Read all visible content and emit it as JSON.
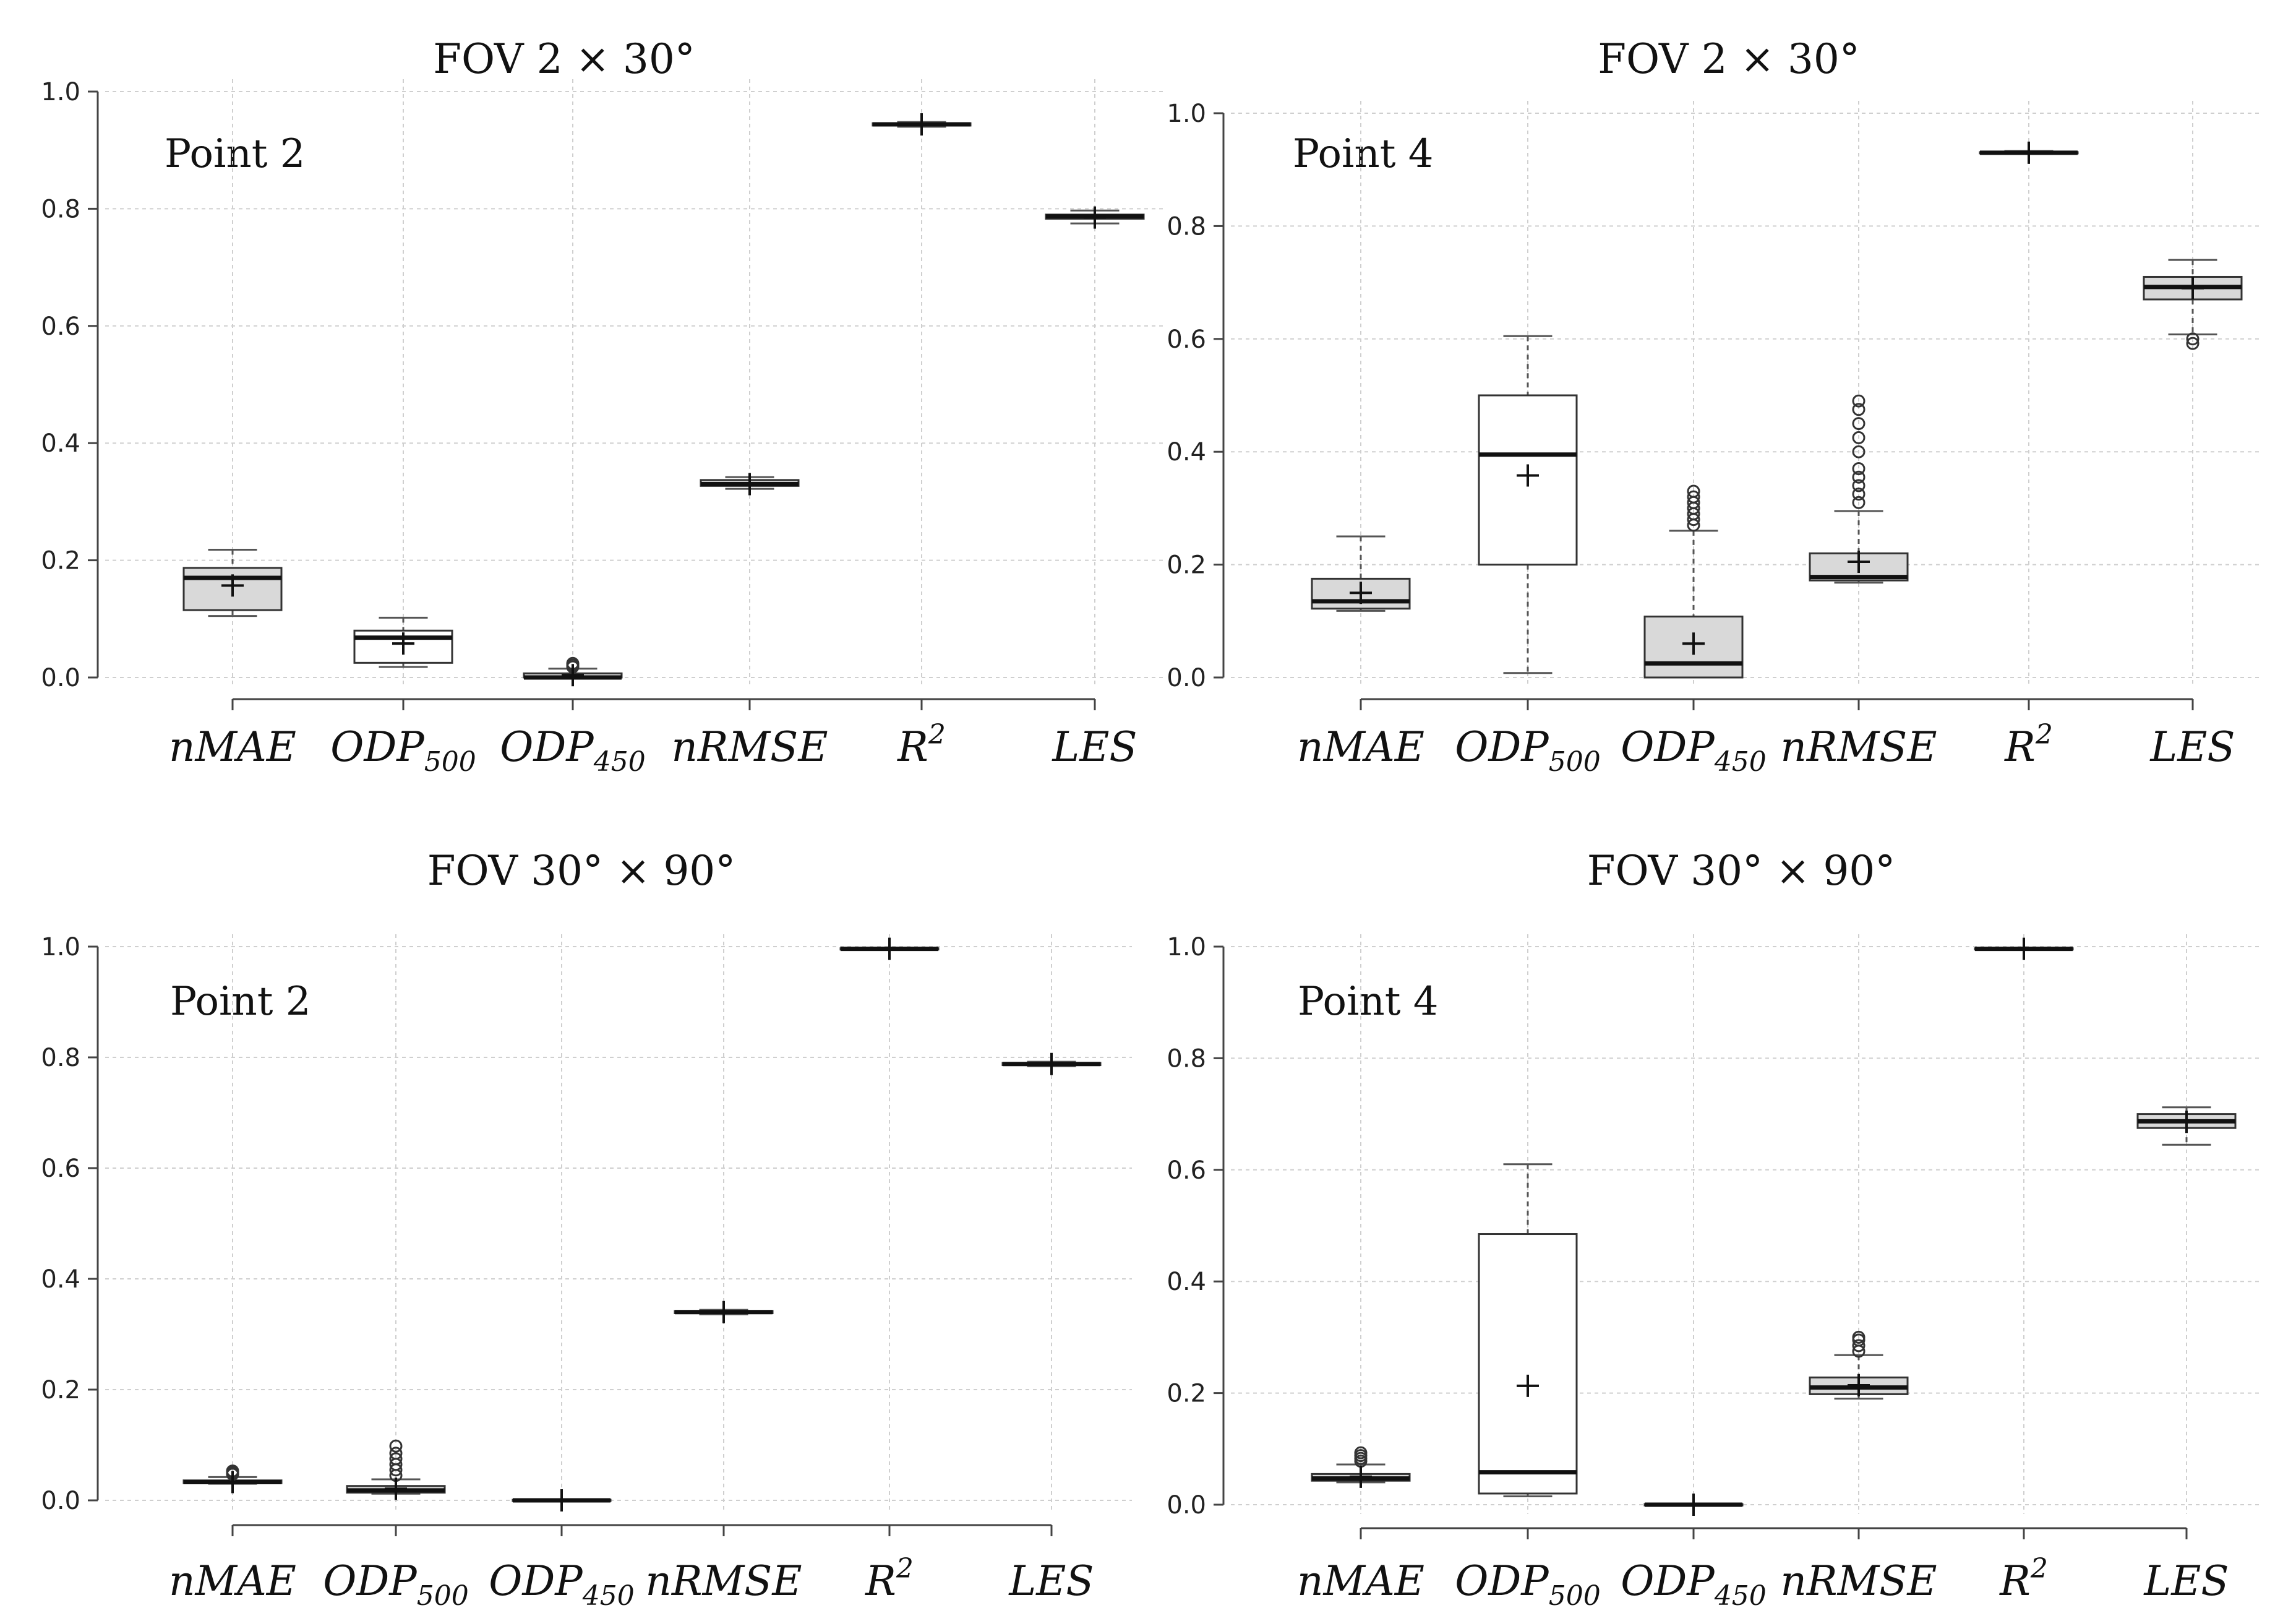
{
  "chart_data": [
    {
      "type": "box",
      "title": "FOV  2 × 30°",
      "panel_label": "Point 2",
      "ylim": [
        0,
        1.0
      ],
      "yticks": [
        "0.0",
        "0.2",
        "0.4",
        "0.6",
        "0.8",
        "1.0"
      ],
      "grid": true,
      "categories": [
        {
          "name": "nMAE",
          "sub": ""
        },
        {
          "name": "ODP",
          "sub": "500"
        },
        {
          "name": "ODP",
          "sub": "450"
        },
        {
          "name": "nRMSE",
          "sub": ""
        },
        {
          "name": "R",
          "sup": "2"
        },
        {
          "name": "LES",
          "sub": ""
        }
      ],
      "boxes": [
        {
          "fill": "#d9d9d9",
          "min": 0.105,
          "q1": 0.115,
          "median": 0.17,
          "q3": 0.187,
          "max": 0.218,
          "mean": 0.157,
          "outliers": []
        },
        {
          "fill": "#ffffff",
          "min": 0.018,
          "q1": 0.025,
          "median": 0.068,
          "q3": 0.08,
          "max": 0.102,
          "mean": 0.058,
          "outliers": []
        },
        {
          "fill": "#d9d9d9",
          "min": 0.0,
          "q1": 0.0,
          "median": 0.0,
          "q3": 0.007,
          "max": 0.015,
          "mean": 0.004,
          "outliers": [
            0.018,
            0.021,
            0.024
          ]
        },
        {
          "fill": "#d9d9d9",
          "min": 0.322,
          "q1": 0.327,
          "median": 0.33,
          "q3": 0.337,
          "max": 0.342,
          "mean": 0.33,
          "outliers": []
        },
        {
          "fill": "#d9d9d9",
          "min": 0.94,
          "q1": 0.942,
          "median": 0.944,
          "q3": 0.946,
          "max": 0.948,
          "mean": 0.944,
          "outliers": []
        },
        {
          "fill": "#d9d9d9",
          "min": 0.775,
          "q1": 0.783,
          "median": 0.787,
          "q3": 0.79,
          "max": 0.797,
          "mean": 0.785,
          "outliers": []
        }
      ]
    },
    {
      "type": "box",
      "title": "FOV  2 × 30°",
      "panel_label": "Point 4",
      "ylim": [
        0,
        1.0
      ],
      "yticks": [
        "0.0",
        "0.2",
        "0.4",
        "0.6",
        "0.8",
        "1.0"
      ],
      "grid": true,
      "categories": [
        {
          "name": "nMAE",
          "sub": ""
        },
        {
          "name": "ODP",
          "sub": "500"
        },
        {
          "name": "ODP",
          "sub": "450"
        },
        {
          "name": "nRMSE",
          "sub": ""
        },
        {
          "name": "R",
          "sup": "2"
        },
        {
          "name": "LES",
          "sub": ""
        }
      ],
      "boxes": [
        {
          "fill": "#d9d9d9",
          "min": 0.118,
          "q1": 0.122,
          "median": 0.135,
          "q3": 0.175,
          "max": 0.25,
          "mean": 0.15,
          "outliers": []
        },
        {
          "fill": "#ffffff",
          "min": 0.008,
          "q1": 0.2,
          "median": 0.395,
          "q3": 0.5,
          "max": 0.605,
          "mean": 0.358,
          "outliers": []
        },
        {
          "fill": "#d9d9d9",
          "min": 0.0,
          "q1": 0.0,
          "median": 0.025,
          "q3": 0.108,
          "max": 0.26,
          "mean": 0.06,
          "outliers": [
            0.27,
            0.28,
            0.29,
            0.3,
            0.31,
            0.32,
            0.33
          ]
        },
        {
          "fill": "#d9d9d9",
          "min": 0.168,
          "q1": 0.172,
          "median": 0.178,
          "q3": 0.22,
          "max": 0.295,
          "mean": 0.205,
          "outliers": [
            0.31,
            0.325,
            0.34,
            0.355,
            0.37,
            0.4,
            0.425,
            0.45,
            0.475,
            0.49
          ]
        },
        {
          "fill": "#d9d9d9",
          "min": 0.928,
          "q1": 0.929,
          "median": 0.93,
          "q3": 0.931,
          "max": 0.933,
          "mean": 0.93,
          "outliers": []
        },
        {
          "fill": "#d9d9d9",
          "min": 0.608,
          "q1": 0.67,
          "median": 0.692,
          "q3": 0.71,
          "max": 0.74,
          "mean": 0.69,
          "outliers": [
            0.592,
            0.6
          ]
        }
      ]
    },
    {
      "type": "box",
      "title": "FOV  30° × 90°",
      "panel_label": "Point 2",
      "ylim": [
        0,
        1.0
      ],
      "yticks": [
        "0.0",
        "0.2",
        "0.4",
        "0.6",
        "0.8",
        "1.0"
      ],
      "grid": true,
      "categories": [
        {
          "name": "nMAE",
          "sub": ""
        },
        {
          "name": "ODP",
          "sub": "500"
        },
        {
          "name": "ODP",
          "sub": "450"
        },
        {
          "name": "nRMSE",
          "sub": ""
        },
        {
          "name": "R",
          "sup": "2"
        },
        {
          "name": "LES",
          "sub": ""
        }
      ],
      "boxes": [
        {
          "fill": "#d9d9d9",
          "min": 0.03,
          "q1": 0.031,
          "median": 0.033,
          "q3": 0.036,
          "max": 0.042,
          "mean": 0.033,
          "outliers": [
            0.047,
            0.05,
            0.053
          ]
        },
        {
          "fill": "#d9d9d9",
          "min": 0.012,
          "q1": 0.014,
          "median": 0.018,
          "q3": 0.026,
          "max": 0.038,
          "mean": 0.021,
          "outliers": [
            0.045,
            0.055,
            0.065,
            0.075,
            0.085,
            0.098
          ]
        },
        {
          "fill": "#d9d9d9",
          "min": 0.0,
          "q1": 0.0,
          "median": 0.0,
          "q3": 0.001,
          "max": 0.002,
          "mean": 0.0,
          "outliers": []
        },
        {
          "fill": "#d9d9d9",
          "min": 0.336,
          "q1": 0.338,
          "median": 0.34,
          "q3": 0.342,
          "max": 0.344,
          "mean": 0.34,
          "outliers": []
        },
        {
          "fill": "#d9d9d9",
          "min": 0.994,
          "q1": 0.995,
          "median": 0.996,
          "q3": 0.997,
          "max": 0.998,
          "mean": 0.996,
          "outliers": []
        },
        {
          "fill": "#d9d9d9",
          "min": 0.784,
          "q1": 0.786,
          "median": 0.788,
          "q3": 0.79,
          "max": 0.792,
          "mean": 0.788,
          "outliers": []
        }
      ]
    },
    {
      "type": "box",
      "title": "FOV  30° × 90°",
      "panel_label": "Point 4",
      "ylim": [
        0,
        1.0
      ],
      "yticks": [
        "0.0",
        "0.2",
        "0.4",
        "0.6",
        "0.8",
        "1.0"
      ],
      "grid": true,
      "categories": [
        {
          "name": "nMAE",
          "sub": ""
        },
        {
          "name": "ODP",
          "sub": "500"
        },
        {
          "name": "ODP",
          "sub": "450"
        },
        {
          "name": "nRMSE",
          "sub": ""
        },
        {
          "name": "R",
          "sup": "2"
        },
        {
          "name": "LES",
          "sub": ""
        }
      ],
      "boxes": [
        {
          "fill": "#d9d9d9",
          "min": 0.04,
          "q1": 0.043,
          "median": 0.047,
          "q3": 0.055,
          "max": 0.072,
          "mean": 0.05,
          "outliers": [
            0.078,
            0.083,
            0.088,
            0.093
          ]
        },
        {
          "fill": "#ffffff",
          "min": 0.015,
          "q1": 0.02,
          "median": 0.058,
          "q3": 0.485,
          "max": 0.61,
          "mean": 0.213,
          "outliers": []
        },
        {
          "fill": "#d9d9d9",
          "min": 0.0,
          "q1": 0.0,
          "median": 0.0,
          "q3": 0.001,
          "max": 0.002,
          "mean": 0.0,
          "outliers": []
        },
        {
          "fill": "#d9d9d9",
          "min": 0.19,
          "q1": 0.198,
          "median": 0.21,
          "q3": 0.228,
          "max": 0.268,
          "mean": 0.214,
          "outliers": [
            0.275,
            0.285,
            0.295,
            0.3
          ]
        },
        {
          "fill": "#d9d9d9",
          "min": 0.994,
          "q1": 0.995,
          "median": 0.996,
          "q3": 0.997,
          "max": 0.998,
          "mean": 0.996,
          "outliers": []
        },
        {
          "fill": "#d9d9d9",
          "min": 0.645,
          "q1": 0.675,
          "median": 0.687,
          "q3": 0.7,
          "max": 0.712,
          "mean": 0.686,
          "outliers": []
        }
      ]
    }
  ]
}
